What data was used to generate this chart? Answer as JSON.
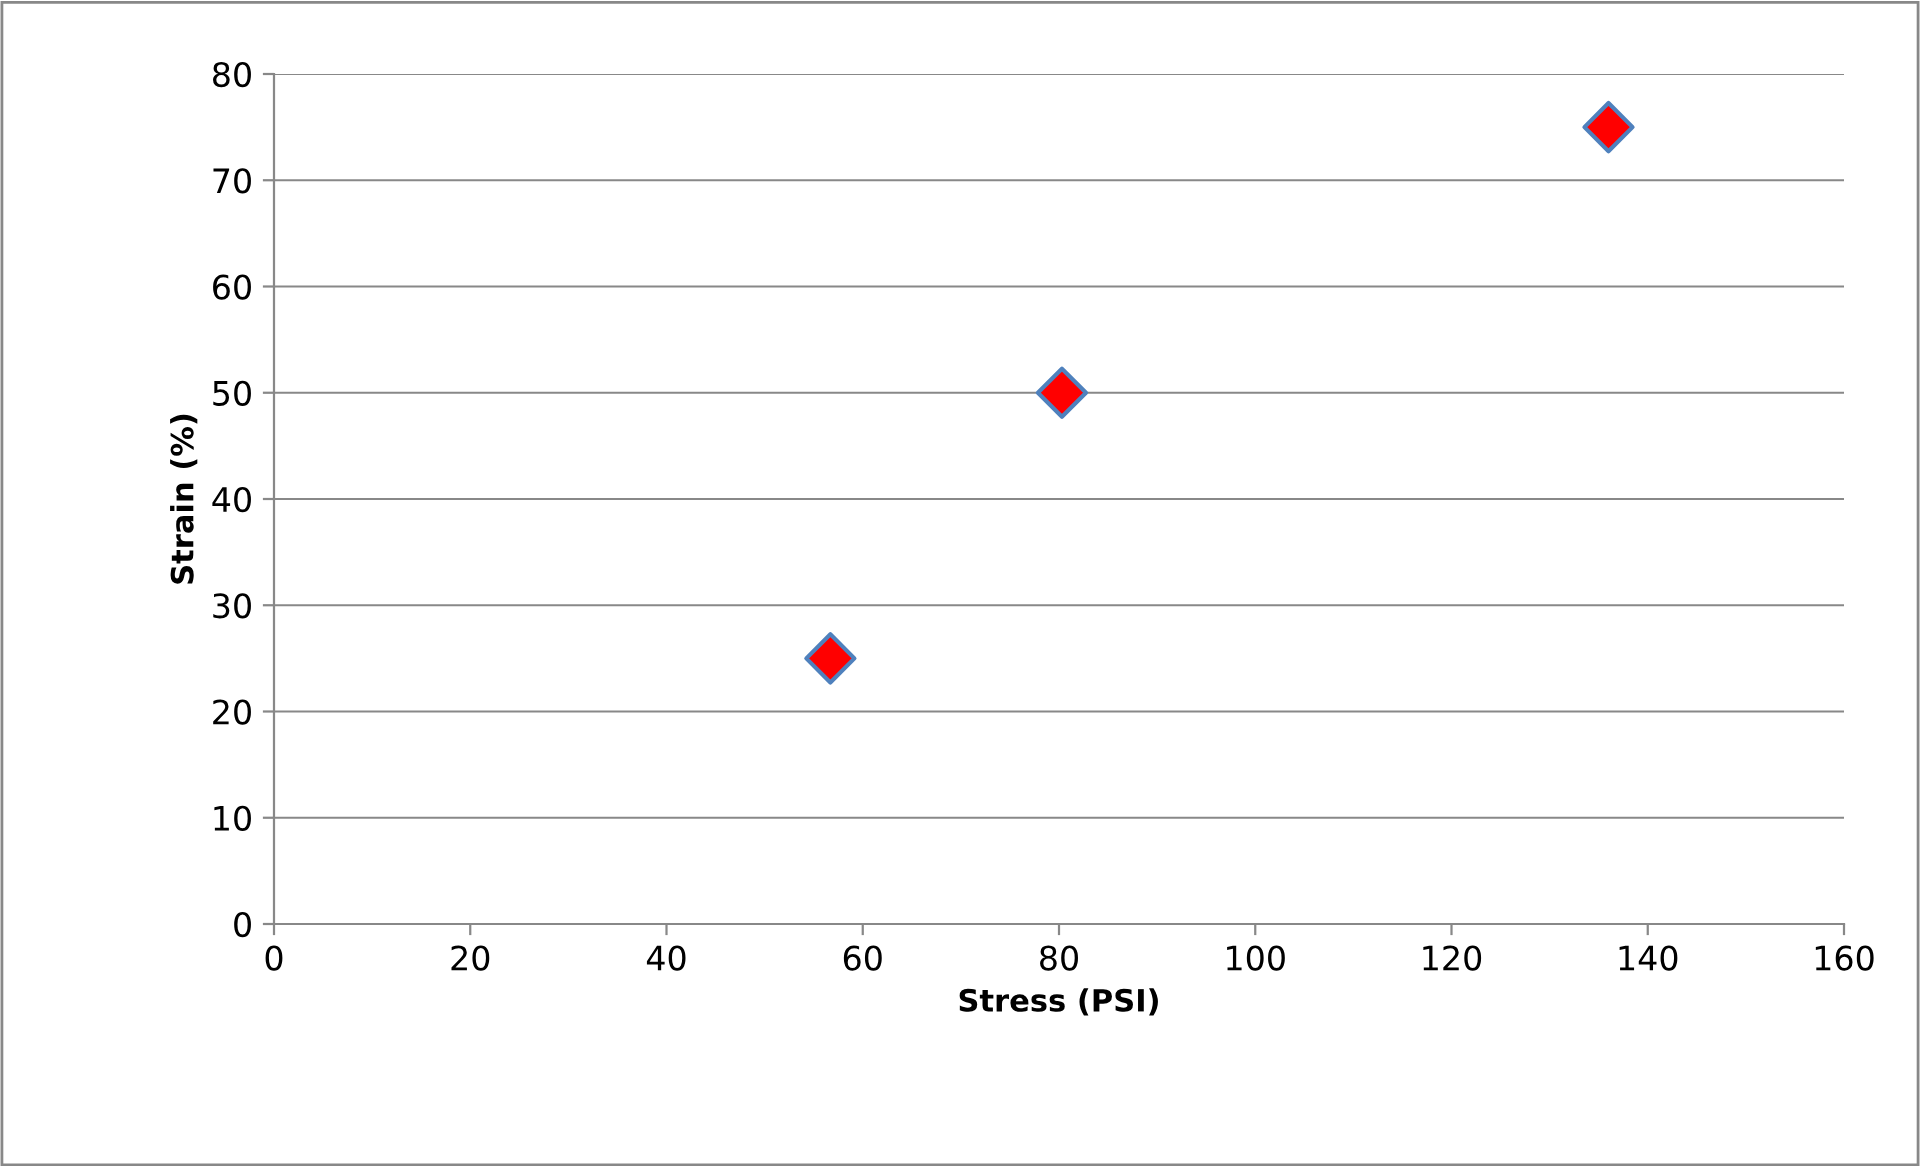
{
  "chart_data": {
    "type": "scatter",
    "xlabel": "Stress (PSI)",
    "ylabel": "Strain (%)",
    "x": [
      56.7,
      80.3,
      136.0
    ],
    "series": [
      {
        "color": "#ff0000",
        "values": [
          25,
          50,
          75
        ]
      }
    ],
    "xlim": [
      0,
      160
    ],
    "xticks": [
      0,
      20,
      40,
      60,
      80,
      100,
      120,
      140,
      160
    ],
    "ylim": [
      0,
      80
    ],
    "yticks": [
      0,
      10,
      20,
      30,
      40,
      50,
      60,
      70,
      80
    ],
    "grid": "y",
    "marker": "diamond",
    "legend": false
  }
}
